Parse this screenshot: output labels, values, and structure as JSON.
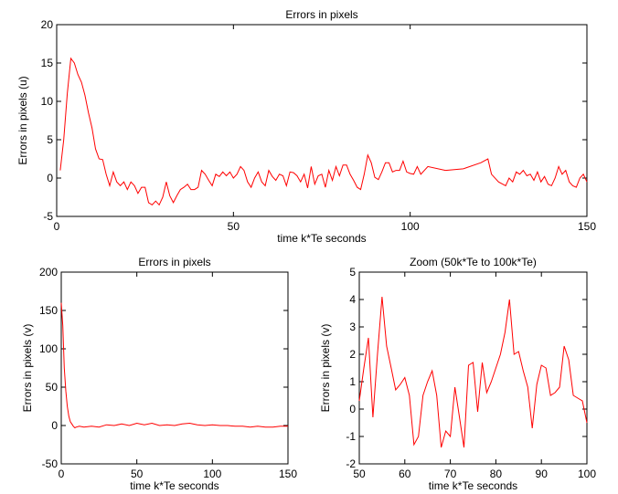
{
  "chart_data": [
    {
      "type": "line",
      "title": "Errors in pixels",
      "xlabel": "time k*Te seconds",
      "ylabel": "Errors in pixels (u)",
      "color": "#ff0000",
      "x": [
        1,
        2,
        3,
        4,
        5,
        6,
        7,
        8,
        9,
        10,
        11,
        12,
        13,
        14,
        15,
        16,
        17,
        18,
        19,
        20,
        21,
        22,
        23,
        24,
        25,
        26,
        27,
        28,
        29,
        30,
        31,
        32,
        33,
        34,
        35,
        36,
        37,
        38,
        39,
        40,
        41,
        42,
        43,
        44,
        45,
        46,
        47,
        48,
        49,
        50,
        51,
        52,
        53,
        54,
        55,
        56,
        57,
        58,
        59,
        60,
        61,
        62,
        63,
        64,
        65,
        66,
        67,
        68,
        69,
        70,
        71,
        72,
        73,
        74,
        75,
        76,
        77,
        78,
        79,
        80,
        81,
        82,
        83,
        84,
        85,
        86,
        87,
        88,
        89,
        90,
        91,
        92,
        93,
        94,
        95,
        96,
        97,
        98,
        99,
        100,
        101,
        102,
        103,
        105,
        110,
        115,
        120,
        122,
        123,
        125,
        127,
        128,
        129,
        130,
        131,
        132,
        133,
        134,
        135,
        136,
        137,
        138,
        139,
        140,
        141,
        142,
        143,
        144,
        145,
        146,
        147,
        148,
        149,
        150
      ],
      "values": [
        1,
        5,
        11,
        15.6,
        15,
        13.5,
        12.5,
        10.8,
        8.5,
        6.5,
        3.8,
        2.5,
        2.4,
        0.5,
        -1,
        0.8,
        -0.5,
        -1,
        -0.5,
        -1.5,
        -0.5,
        -1,
        -2,
        -1.2,
        -1.2,
        -3.2,
        -3.5,
        -3,
        -3.5,
        -2.5,
        -0.5,
        -2.3,
        -3.2,
        -2.3,
        -1.5,
        -1.2,
        -0.8,
        -1.5,
        -1.5,
        -1.2,
        1,
        0.5,
        -0.3,
        -1,
        0.5,
        0.2,
        0.8,
        0.3,
        0.8,
        0,
        0.5,
        1.5,
        1,
        -0.5,
        -1.2,
        0,
        0.8,
        -0.5,
        -1,
        1,
        0.2,
        -0.3,
        0.5,
        0.3,
        -1,
        0.8,
        0.7,
        0.3,
        -0.5,
        0.5,
        -1.3,
        1.5,
        -0.8,
        0.3,
        0.5,
        -1.2,
        1,
        -0.3,
        1.5,
        0.3,
        1.7,
        1.7,
        0.5,
        -0.3,
        -1.2,
        -1.5,
        0.5,
        3,
        2,
        0.1,
        -0.2,
        0.8,
        2,
        2,
        0.8,
        1,
        1,
        2.2,
        0.8,
        0.6,
        0.5,
        1.5,
        0.5,
        1.5,
        1,
        1.2,
        2,
        2.5,
        0.5,
        -0.5,
        -1,
        0,
        -0.5,
        0.8,
        0.5,
        1,
        0.3,
        0.5,
        -0.3,
        0.8,
        -0.5,
        0.2,
        -0.8,
        -1,
        0,
        1.5,
        0.5,
        1,
        -0.5,
        -1,
        -1.2,
        0,
        0.5,
        -0.5
      ],
      "xlim": [
        0,
        150
      ],
      "xticks": [
        0,
        50,
        100,
        150
      ],
      "ylim": [
        -5,
        20
      ],
      "yticks": [
        -5,
        0,
        5,
        10,
        15,
        20
      ]
    },
    {
      "type": "line",
      "title": "Errors in pixels",
      "xlabel": "time k*Te seconds",
      "ylabel": "Errors in pixels (v)",
      "color": "#ff0000",
      "x": [
        0,
        1,
        2,
        3,
        4,
        5,
        6,
        7,
        8,
        9,
        10,
        12,
        15,
        20,
        25,
        30,
        35,
        40,
        45,
        50,
        55,
        60,
        65,
        70,
        75,
        80,
        85,
        90,
        95,
        100,
        105,
        110,
        115,
        120,
        125,
        130,
        135,
        140,
        145,
        150
      ],
      "values": [
        160,
        130,
        75,
        45,
        25,
        12,
        5,
        2,
        -1,
        -3,
        -2,
        -1,
        -2,
        -1,
        -2,
        1,
        0,
        2,
        0,
        3,
        1,
        3,
        0,
        1,
        0,
        2,
        3,
        1,
        0,
        1,
        0,
        0,
        -1,
        -1,
        -2,
        -1,
        -2,
        -2,
        -1,
        -1
      ],
      "xlim": [
        0,
        150
      ],
      "xticks": [
        0,
        50,
        100,
        150
      ],
      "ylim": [
        -50,
        200
      ],
      "yticks": [
        -50,
        0,
        50,
        100,
        150,
        200
      ]
    },
    {
      "type": "line",
      "title": "Zoom (50k*Te to 100k*Te)",
      "xlabel": "time k*Te seconds",
      "ylabel": "Errors in pixels (v)",
      "color": "#ff0000",
      "x": [
        50,
        51,
        52,
        53,
        54,
        55,
        56,
        57,
        58,
        59,
        60,
        61,
        62,
        63,
        64,
        65,
        66,
        67,
        68,
        69,
        70,
        71,
        72,
        73,
        74,
        75,
        76,
        77,
        78,
        79,
        80,
        81,
        82,
        83,
        84,
        85,
        86,
        87,
        88,
        89,
        90,
        91,
        92,
        93,
        94,
        95,
        96,
        97,
        98,
        99,
        100
      ],
      "values": [
        0.3,
        1.5,
        2.6,
        -0.3,
        2,
        4.1,
        2.3,
        1.5,
        0.7,
        0.9,
        1.15,
        0.5,
        -1.3,
        -1,
        0.5,
        1,
        1.4,
        0.5,
        -1.4,
        -0.8,
        -1,
        0.8,
        -0.3,
        -1.4,
        1.6,
        1.7,
        -0.1,
        1.7,
        0.6,
        1,
        1.5,
        2,
        2.8,
        4,
        2,
        2.1,
        1.4,
        0.8,
        -0.7,
        0.9,
        1.6,
        1.5,
        0.5,
        0.6,
        0.8,
        2.3,
        1.8,
        0.5,
        0.4,
        0.3,
        -0.5
      ],
      "xlim": [
        50,
        100
      ],
      "xticks": [
        50,
        60,
        70,
        80,
        90,
        100
      ],
      "ylim": [
        -2,
        5
      ],
      "yticks": [
        -2,
        -1,
        0,
        1,
        2,
        3,
        4,
        5
      ]
    }
  ]
}
